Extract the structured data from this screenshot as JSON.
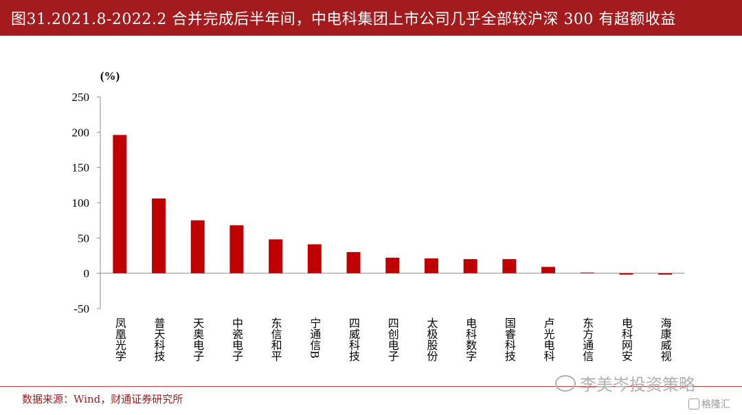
{
  "header": {
    "title": "图31.2021.8-2022.2 合并完成后半年间，中电科集团上市公司几乎全部较沪深 300 有超额收益"
  },
  "chart_data": {
    "type": "bar",
    "unit_label": "(%)",
    "categories": [
      "凤凰光学",
      "普天科技",
      "天奥电子",
      "中瓷电子",
      "东信和平",
      "宁通信B",
      "四威科技",
      "四创电子",
      "太极股份",
      "电科数字",
      "国睿科技",
      "卢光电科",
      "东方通信",
      "电科网安",
      "海康威视"
    ],
    "values": [
      196,
      106,
      75,
      68,
      48,
      41,
      30,
      22,
      21,
      20,
      20,
      9,
      1,
      -2,
      -2
    ],
    "ylim": [
      -50,
      250
    ],
    "yticks": [
      "-50",
      "0",
      "50",
      "100",
      "150",
      "200",
      "250"
    ],
    "bar_color": "#c00000",
    "grid": false
  },
  "footer": {
    "source": "数据来源：Wind，财通证券研究所",
    "watermark": "李美岑投资策略",
    "logo": "格隆汇"
  }
}
